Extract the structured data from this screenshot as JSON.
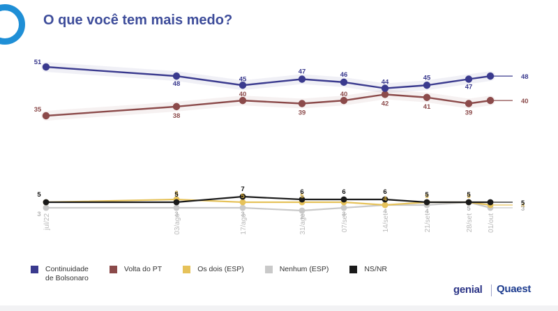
{
  "title": "O que você tem mais medo?",
  "chart_data": {
    "type": "line",
    "x": [
      "jul/22",
      "03/ago",
      "17/ago",
      "31/ago",
      "07/set",
      "14/set",
      "21/set",
      "28/set",
      "01/out"
    ],
    "ylim": [
      0,
      55
    ],
    "grid": false,
    "legend_position": "bottom",
    "series": [
      {
        "name": "Continuidade de Bolsonaro",
        "color": "#3a3a8e",
        "values": [
          51,
          48,
          45,
          47,
          46,
          44,
          45,
          47,
          48
        ]
      },
      {
        "name": "Volta do PT",
        "color": "#8b4a4a",
        "values": [
          35,
          38,
          40,
          39,
          40,
          42,
          41,
          39,
          40
        ]
      },
      {
        "name": "Os dois (ESP)",
        "color": "#e6c25a",
        "values": [
          5,
          6,
          5,
          5,
          5,
          4,
          5,
          5,
          4
        ]
      },
      {
        "name": "Nenhum (ESP)",
        "color": "#c9c9c9",
        "values": [
          3,
          3,
          3,
          2,
          3,
          4,
          4,
          5,
          3
        ]
      },
      {
        "name": "NS/NR",
        "color": "#1a1a1a",
        "values": [
          5,
          5,
          7,
          6,
          6,
          6,
          5,
          5,
          5
        ]
      }
    ],
    "data_labels": [
      [
        "51",
        "48",
        "45",
        "47",
        "46",
        "44",
        "45",
        "47",
        "48"
      ],
      [
        "35",
        "38",
        "40",
        "39",
        "40",
        "42",
        "41",
        "39",
        "40"
      ],
      [
        "",
        "6",
        "5",
        "5",
        "",
        "4",
        "5",
        "5",
        "4"
      ],
      [
        "3",
        "3",
        "3",
        "2",
        "3",
        "4",
        "4",
        "5",
        "3"
      ],
      [
        "5",
        "5",
        "7",
        "6",
        "6",
        "6",
        "5",
        "5",
        "5"
      ]
    ]
  },
  "legend": [
    {
      "label": "Continuidade\nde Bolsonaro",
      "color": "#3a3a8e"
    },
    {
      "label": "Volta do PT",
      "color": "#8b4a4a"
    },
    {
      "label": "Os dois (ESP)",
      "color": "#e6c25a"
    },
    {
      "label": "Nenhum (ESP)",
      "color": "#c9c9c9"
    },
    {
      "label": "NS/NR",
      "color": "#1a1a1a"
    }
  ],
  "brand": {
    "left": "genial",
    "right": "Quaest"
  }
}
